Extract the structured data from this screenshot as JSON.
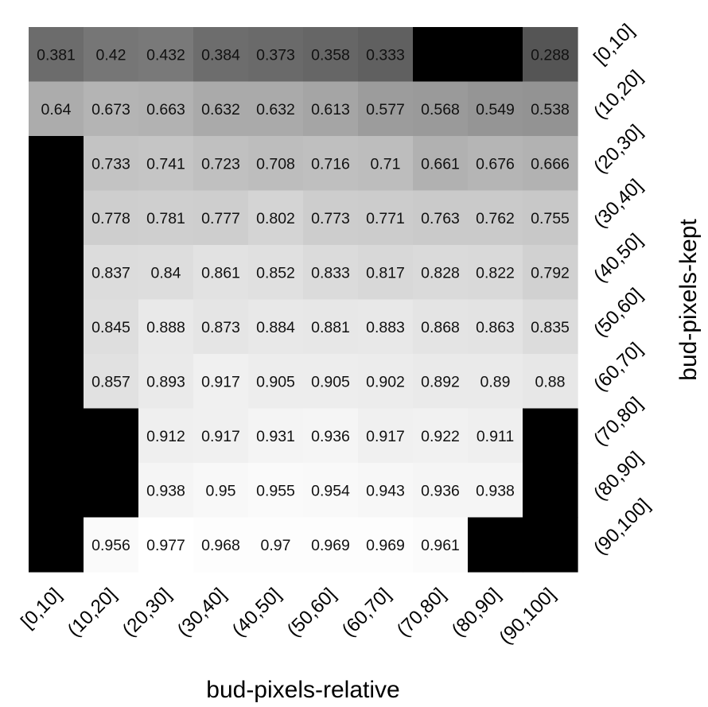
{
  "chart_data": {
    "type": "heatmap",
    "title": "",
    "xlabel": "bud-pixels-relative",
    "ylabel": "bud-pixels-kept",
    "x_categories": [
      "[0,10]",
      "(10,20]",
      "(20,30]",
      "(30,40]",
      "(40,50]",
      "(50,60]",
      "(60,70]",
      "(70,80]",
      "(80,90]",
      "(90,100]"
    ],
    "y_categories": [
      "[0,10]",
      "(10,20]",
      "(20,30]",
      "(30,40]",
      "(40,50]",
      "(50,60]",
      "(60,70]",
      "(70,80]",
      "(80,90]",
      "(90,100]"
    ],
    "missing_color": "#000000",
    "color_scale": {
      "low": "#555555",
      "high": "#ffffff"
    },
    "values": [
      [
        0.381,
        0.42,
        0.432,
        0.384,
        0.373,
        0.358,
        0.333,
        null,
        null,
        0.288
      ],
      [
        0.64,
        0.673,
        0.663,
        0.632,
        0.632,
        0.613,
        0.577,
        0.568,
        0.549,
        0.538
      ],
      [
        null,
        0.733,
        0.741,
        0.723,
        0.708,
        0.716,
        0.71,
        0.661,
        0.676,
        0.666
      ],
      [
        null,
        0.778,
        0.781,
        0.777,
        0.802,
        0.773,
        0.771,
        0.763,
        0.762,
        0.755
      ],
      [
        null,
        0.837,
        0.84,
        0.861,
        0.852,
        0.833,
        0.817,
        0.828,
        0.822,
        0.792
      ],
      [
        null,
        0.845,
        0.888,
        0.873,
        0.884,
        0.881,
        0.883,
        0.868,
        0.863,
        0.835
      ],
      [
        null,
        0.857,
        0.893,
        0.917,
        0.905,
        0.905,
        0.902,
        0.892,
        0.89,
        0.88
      ],
      [
        null,
        null,
        0.912,
        0.917,
        0.931,
        0.936,
        0.917,
        0.922,
        0.911,
        null
      ],
      [
        null,
        null,
        0.938,
        0.95,
        0.955,
        0.954,
        0.943,
        0.936,
        0.938,
        null
      ],
      [
        null,
        0.956,
        0.977,
        0.968,
        0.97,
        0.969,
        0.969,
        0.961,
        null,
        null
      ]
    ]
  }
}
